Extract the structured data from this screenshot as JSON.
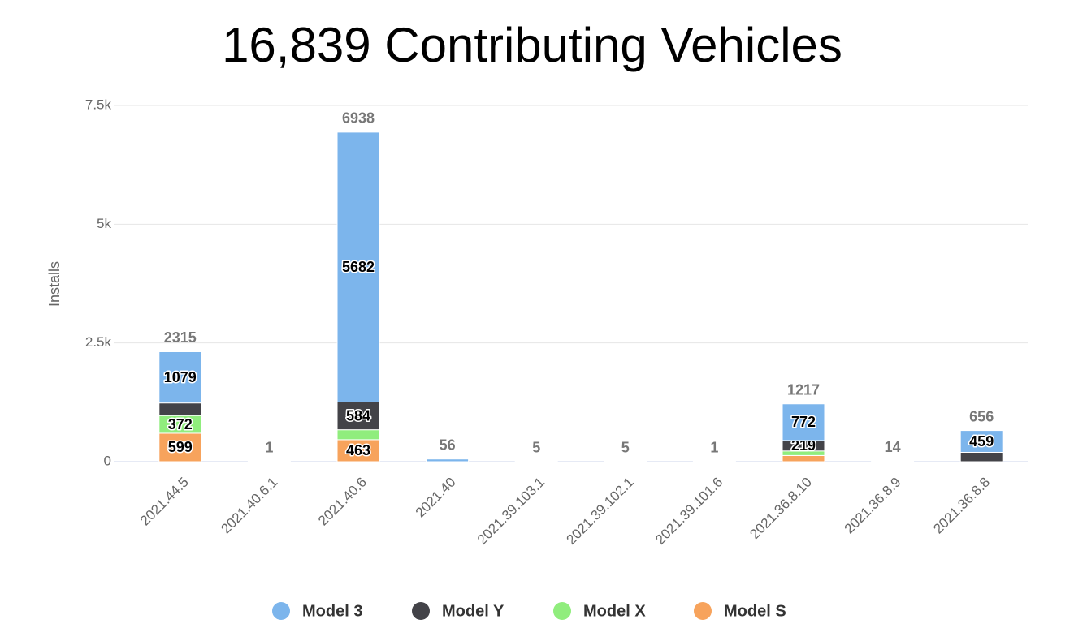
{
  "chart_data": {
    "type": "stacked_bar",
    "title": "16,839 Contributing Vehicles",
    "y_label": "Installs",
    "categories": [
      "2021.44.5",
      "2021.40.6.1",
      "2021.40.6",
      "2021.40",
      "2021.39.103.1",
      "2021.39.102.1",
      "2021.39.101.6",
      "2021.36.8.10",
      "2021.36.8.9",
      "2021.36.8.8"
    ],
    "series": [
      {
        "name": "Model S",
        "color": "#f7a35c",
        "values": [
          599,
          0,
          463,
          0,
          0,
          0,
          0,
          130,
          0,
          0
        ]
      },
      {
        "name": "Model X",
        "color": "#90ed7d",
        "values": [
          372,
          0,
          209,
          0,
          0,
          0,
          0,
          96,
          0,
          0
        ]
      },
      {
        "name": "Model Y",
        "color": "#434348",
        "values": [
          265,
          0,
          584,
          0,
          0,
          0,
          0,
          219,
          0,
          197
        ]
      },
      {
        "name": "Model 3",
        "color": "#7cb5ec",
        "values": [
          1079,
          1,
          5682,
          56,
          5,
          5,
          1,
          772,
          14,
          459
        ]
      }
    ],
    "legend_order": [
      3,
      2,
      1,
      0
    ],
    "totals": [
      2315,
      1,
      6938,
      56,
      5,
      5,
      1,
      1217,
      14,
      656
    ],
    "ylim": [
      0,
      7500
    ],
    "yticks": [
      0,
      {
        "value": 2500,
        "label": "2.5k"
      },
      {
        "value": 5000,
        "label": "5k"
      },
      {
        "value": 7500,
        "label": "7.5k"
      }
    ],
    "grid": true
  }
}
